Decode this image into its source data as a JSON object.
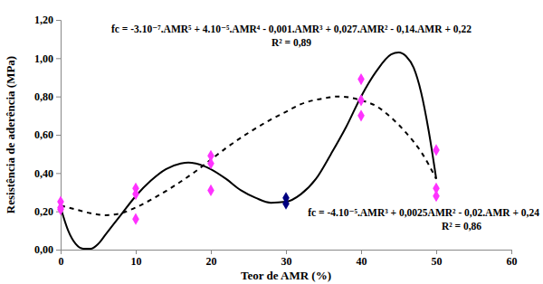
{
  "chart_data": {
    "type": "scatter",
    "x_label": "Teor de AMR (%)",
    "y_label": "Resistência de aderência (MPa)",
    "annotations": [
      "fc = -3.10⁻⁷.AMR⁵ + 4.10⁻⁵.AMR⁴ - 0,001.AMR³ + 0,027.AMR² - 0,14.AMR + 0,22",
      "R² = 0,89",
      "fc = -4.10⁻⁵.AMR³ + 0,0025AMR² - 0,02.AMR + 0,24",
      "R² = 0,86"
    ],
    "xlim": [
      0,
      60
    ],
    "xticks": [
      0,
      10,
      20,
      30,
      40,
      50,
      60
    ],
    "ylim": [
      0,
      1.2
    ],
    "yticks": [
      {
        "value": 0,
        "label": "0,00"
      },
      {
        "value": 0.2,
        "label": "0,20"
      },
      {
        "value": 0.4,
        "label": "0,40"
      },
      {
        "value": 0.6,
        "label": "0,60"
      },
      {
        "value": 0.8,
        "label": "0,80"
      },
      {
        "value": 1.0,
        "label": "1,00"
      },
      {
        "value": 1.2,
        "label": "1,20"
      }
    ],
    "grid": false,
    "series": [
      {
        "type": "scatter",
        "color": "#ff33ff",
        "marker": "diamond",
        "x": [
          0,
          0,
          0,
          10,
          10,
          10,
          20,
          20,
          20,
          40,
          40,
          40,
          50,
          50,
          50
        ],
        "values": [
          0.25,
          0.22,
          0.21,
          0.32,
          0.29,
          0.16,
          0.49,
          0.45,
          0.31,
          0.89,
          0.78,
          0.7,
          0.52,
          0.32,
          0.28
        ]
      },
      {
        "type": "scatter",
        "color": "#000080",
        "marker": "diamond",
        "x": [
          30,
          30
        ],
        "values": [
          0.27,
          0.24
        ]
      },
      {
        "type": "line",
        "color": "#000000",
        "line_style": "solid",
        "x": [
          0,
          1,
          2,
          3,
          4,
          5,
          6,
          8,
          10,
          12,
          14,
          16,
          17,
          18,
          20,
          22,
          24,
          26,
          28,
          30,
          32,
          34,
          36,
          38,
          40,
          42,
          44,
          45,
          46,
          47,
          48,
          49,
          50
        ],
        "values": [
          0.22,
          0.1,
          0.03,
          0.005,
          0.005,
          0.03,
          0.08,
          0.18,
          0.28,
          0.36,
          0.42,
          0.45,
          0.455,
          0.45,
          0.42,
          0.37,
          0.31,
          0.27,
          0.245,
          0.25,
          0.29,
          0.37,
          0.5,
          0.64,
          0.8,
          0.93,
          1.02,
          1.03,
          1.01,
          0.95,
          0.82,
          0.62,
          0.37
        ]
      },
      {
        "type": "line",
        "color": "#000000",
        "line_style": "dashed",
        "x": [
          0,
          2,
          4,
          6,
          8,
          10,
          12,
          15,
          18,
          20,
          22,
          25,
          28,
          30,
          32,
          35,
          37,
          40,
          42,
          44,
          46,
          48,
          50
        ],
        "values": [
          0.23,
          0.21,
          0.19,
          0.18,
          0.19,
          0.22,
          0.26,
          0.33,
          0.41,
          0.47,
          0.53,
          0.61,
          0.68,
          0.72,
          0.76,
          0.79,
          0.8,
          0.78,
          0.75,
          0.69,
          0.61,
          0.51,
          0.37
        ]
      }
    ]
  }
}
